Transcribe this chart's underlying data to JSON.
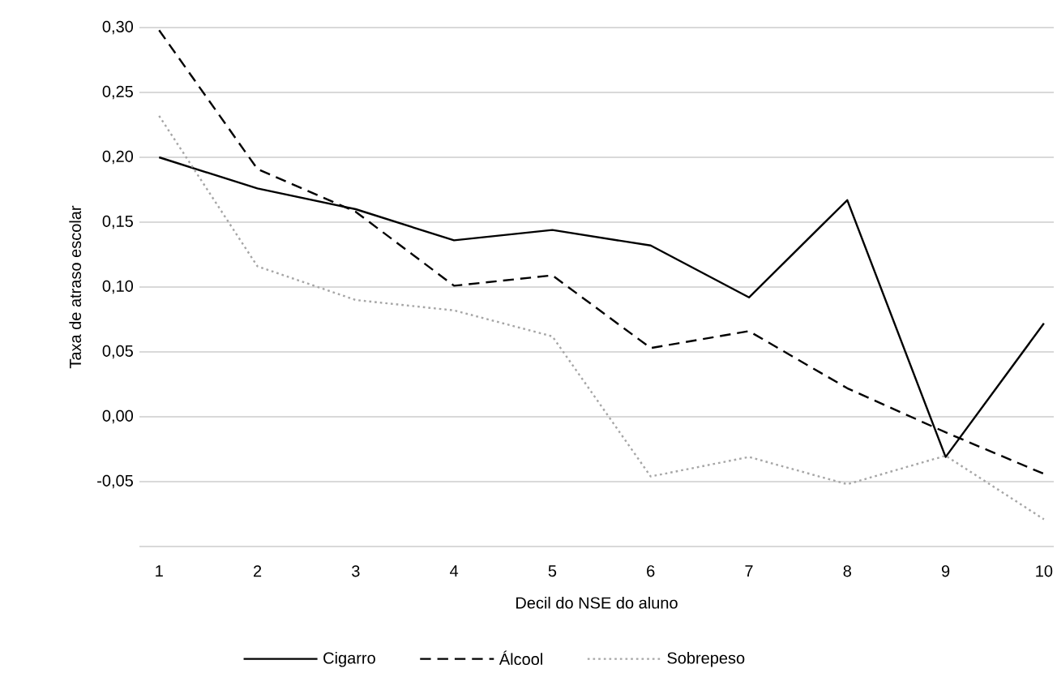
{
  "chart_data": {
    "type": "line",
    "xlabel": "Decil do NSE do aluno",
    "ylabel": "Taxa de atraso escolar",
    "categories": [
      "1",
      "2",
      "3",
      "4",
      "5",
      "6",
      "7",
      "8",
      "9",
      "10"
    ],
    "series": [
      {
        "name": "Cigarro",
        "color": "#000000",
        "line_style": "solid",
        "values": [
          0.2,
          0.176,
          0.16,
          0.136,
          0.144,
          0.132,
          0.092,
          0.167,
          -0.031,
          0.072
        ]
      },
      {
        "name": "Álcool",
        "color": "#000000",
        "line_style": "dashed",
        "values": [
          0.298,
          0.191,
          0.158,
          0.101,
          0.109,
          0.053,
          0.066,
          0.022,
          -0.012,
          -0.044
        ]
      },
      {
        "name": "Sobrepeso",
        "color": "#a6a6a6",
        "line_style": "dotted",
        "values": [
          0.232,
          0.116,
          0.09,
          0.082,
          0.062,
          -0.046,
          -0.031,
          -0.052,
          -0.03,
          -0.079
        ]
      }
    ],
    "ylim": [
      -0.1,
      0.3
    ],
    "yticks": [
      {
        "value": -0.1,
        "label": null
      },
      {
        "value": -0.05,
        "label": "-0,05"
      },
      {
        "value": 0,
        "label": "0,00"
      },
      {
        "value": 0.05,
        "label": "0,05"
      },
      {
        "value": 0.1,
        "label": "0,10"
      },
      {
        "value": 0.15,
        "label": "0,15"
      },
      {
        "value": 0.2,
        "label": "0,20"
      },
      {
        "value": 0.25,
        "label": "0,25"
      },
      {
        "value": 0.3,
        "label": "0,30"
      }
    ],
    "grid": "y",
    "legend": "bottom",
    "marker": "none"
  }
}
